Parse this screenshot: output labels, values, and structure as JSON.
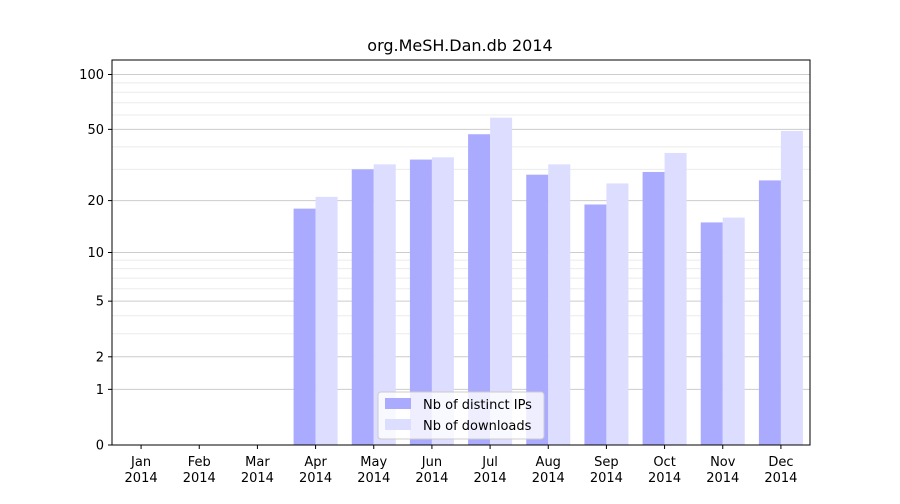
{
  "chart_data": {
    "type": "bar",
    "title": "org.MeSH.Dan.db 2014",
    "xlabel": "",
    "ylabel": "",
    "scale": "symlog",
    "ylim": [
      0,
      120
    ],
    "grid": true,
    "legend_position": "bottom-center",
    "categories": [
      [
        "Jan",
        "2014"
      ],
      [
        "Feb",
        "2014"
      ],
      [
        "Mar",
        "2014"
      ],
      [
        "Apr",
        "2014"
      ],
      [
        "May",
        "2014"
      ],
      [
        "Jun",
        "2014"
      ],
      [
        "Jul",
        "2014"
      ],
      [
        "Aug",
        "2014"
      ],
      [
        "Sep",
        "2014"
      ],
      [
        "Oct",
        "2014"
      ],
      [
        "Nov",
        "2014"
      ],
      [
        "Dec",
        "2014"
      ]
    ],
    "y_ticks": [
      0,
      1,
      2,
      5,
      10,
      20,
      50,
      100
    ],
    "series": [
      {
        "name": "Nb of distinct IPs",
        "color": "#aaaaff",
        "values": [
          0,
          0,
          0,
          18,
          30,
          34,
          47,
          28,
          19,
          29,
          15,
          26
        ]
      },
      {
        "name": "Nb of downloads",
        "color": "#ddddff",
        "values": [
          0,
          0,
          0,
          21,
          32,
          35,
          58,
          32,
          25,
          37,
          16,
          49
        ]
      }
    ]
  }
}
